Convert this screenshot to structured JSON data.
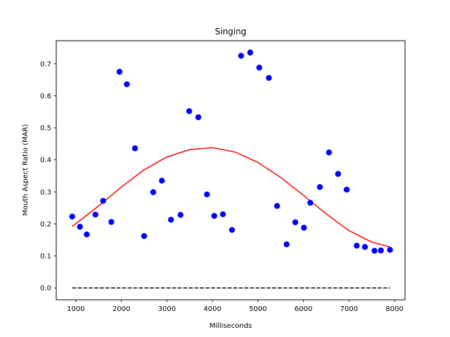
{
  "chart_data": {
    "type": "scatter",
    "title": "Singing",
    "xlabel": "Milliseconds",
    "ylabel": "Mouth Aspect Ratio (MAR)",
    "xlim": [
      570,
      8230
    ],
    "ylim": [
      -0.037,
      0.772
    ],
    "xticks": [
      1000,
      2000,
      3000,
      4000,
      5000,
      6000,
      7000,
      8000
    ],
    "yticks": [
      0.0,
      0.1,
      0.2,
      0.3,
      0.4,
      0.5,
      0.6,
      0.7
    ],
    "ytick_labels": [
      "0.0",
      "0.1",
      "0.2",
      "0.3",
      "0.4",
      "0.5",
      "0.6",
      "0.7"
    ],
    "grid": false,
    "series": [
      {
        "type": "scatter",
        "color": "#0000ff",
        "points": [
          [
            920,
            0.223
          ],
          [
            1090,
            0.191
          ],
          [
            1240,
            0.167
          ],
          [
            1430,
            0.229
          ],
          [
            1600,
            0.272
          ],
          [
            1780,
            0.206
          ],
          [
            1960,
            0.675
          ],
          [
            2120,
            0.636
          ],
          [
            2300,
            0.436
          ],
          [
            2500,
            0.162
          ],
          [
            2700,
            0.299
          ],
          [
            2890,
            0.335
          ],
          [
            3090,
            0.213
          ],
          [
            3300,
            0.228
          ],
          [
            3490,
            0.552
          ],
          [
            3690,
            0.533
          ],
          [
            3880,
            0.292
          ],
          [
            4040,
            0.225
          ],
          [
            4230,
            0.23
          ],
          [
            4430,
            0.181
          ],
          [
            4630,
            0.725
          ],
          [
            4830,
            0.735
          ],
          [
            5030,
            0.688
          ],
          [
            5240,
            0.656
          ],
          [
            5420,
            0.256
          ],
          [
            5630,
            0.136
          ],
          [
            5820,
            0.205
          ],
          [
            6010,
            0.188
          ],
          [
            6150,
            0.266
          ],
          [
            6360,
            0.315
          ],
          [
            6560,
            0.423
          ],
          [
            6760,
            0.356
          ],
          [
            6950,
            0.307
          ],
          [
            7170,
            0.132
          ],
          [
            7350,
            0.128
          ],
          [
            7560,
            0.116
          ],
          [
            7700,
            0.117
          ],
          [
            7900,
            0.119
          ]
        ]
      },
      {
        "type": "line",
        "color": "#ff0000",
        "style": "solid",
        "points": [
          [
            920,
            0.192
          ],
          [
            1500,
            0.256
          ],
          [
            2000,
            0.315
          ],
          [
            2500,
            0.369
          ],
          [
            3000,
            0.409
          ],
          [
            3500,
            0.432
          ],
          [
            4000,
            0.438
          ],
          [
            4500,
            0.424
          ],
          [
            5000,
            0.392
          ],
          [
            5500,
            0.345
          ],
          [
            6000,
            0.289
          ],
          [
            6500,
            0.231
          ],
          [
            7000,
            0.179
          ],
          [
            7500,
            0.143
          ],
          [
            7900,
            0.128
          ]
        ]
      },
      {
        "type": "line",
        "color": "#000000",
        "style": "dashed",
        "points": [
          [
            920,
            0.0
          ],
          [
            7900,
            0.0
          ]
        ]
      }
    ]
  }
}
